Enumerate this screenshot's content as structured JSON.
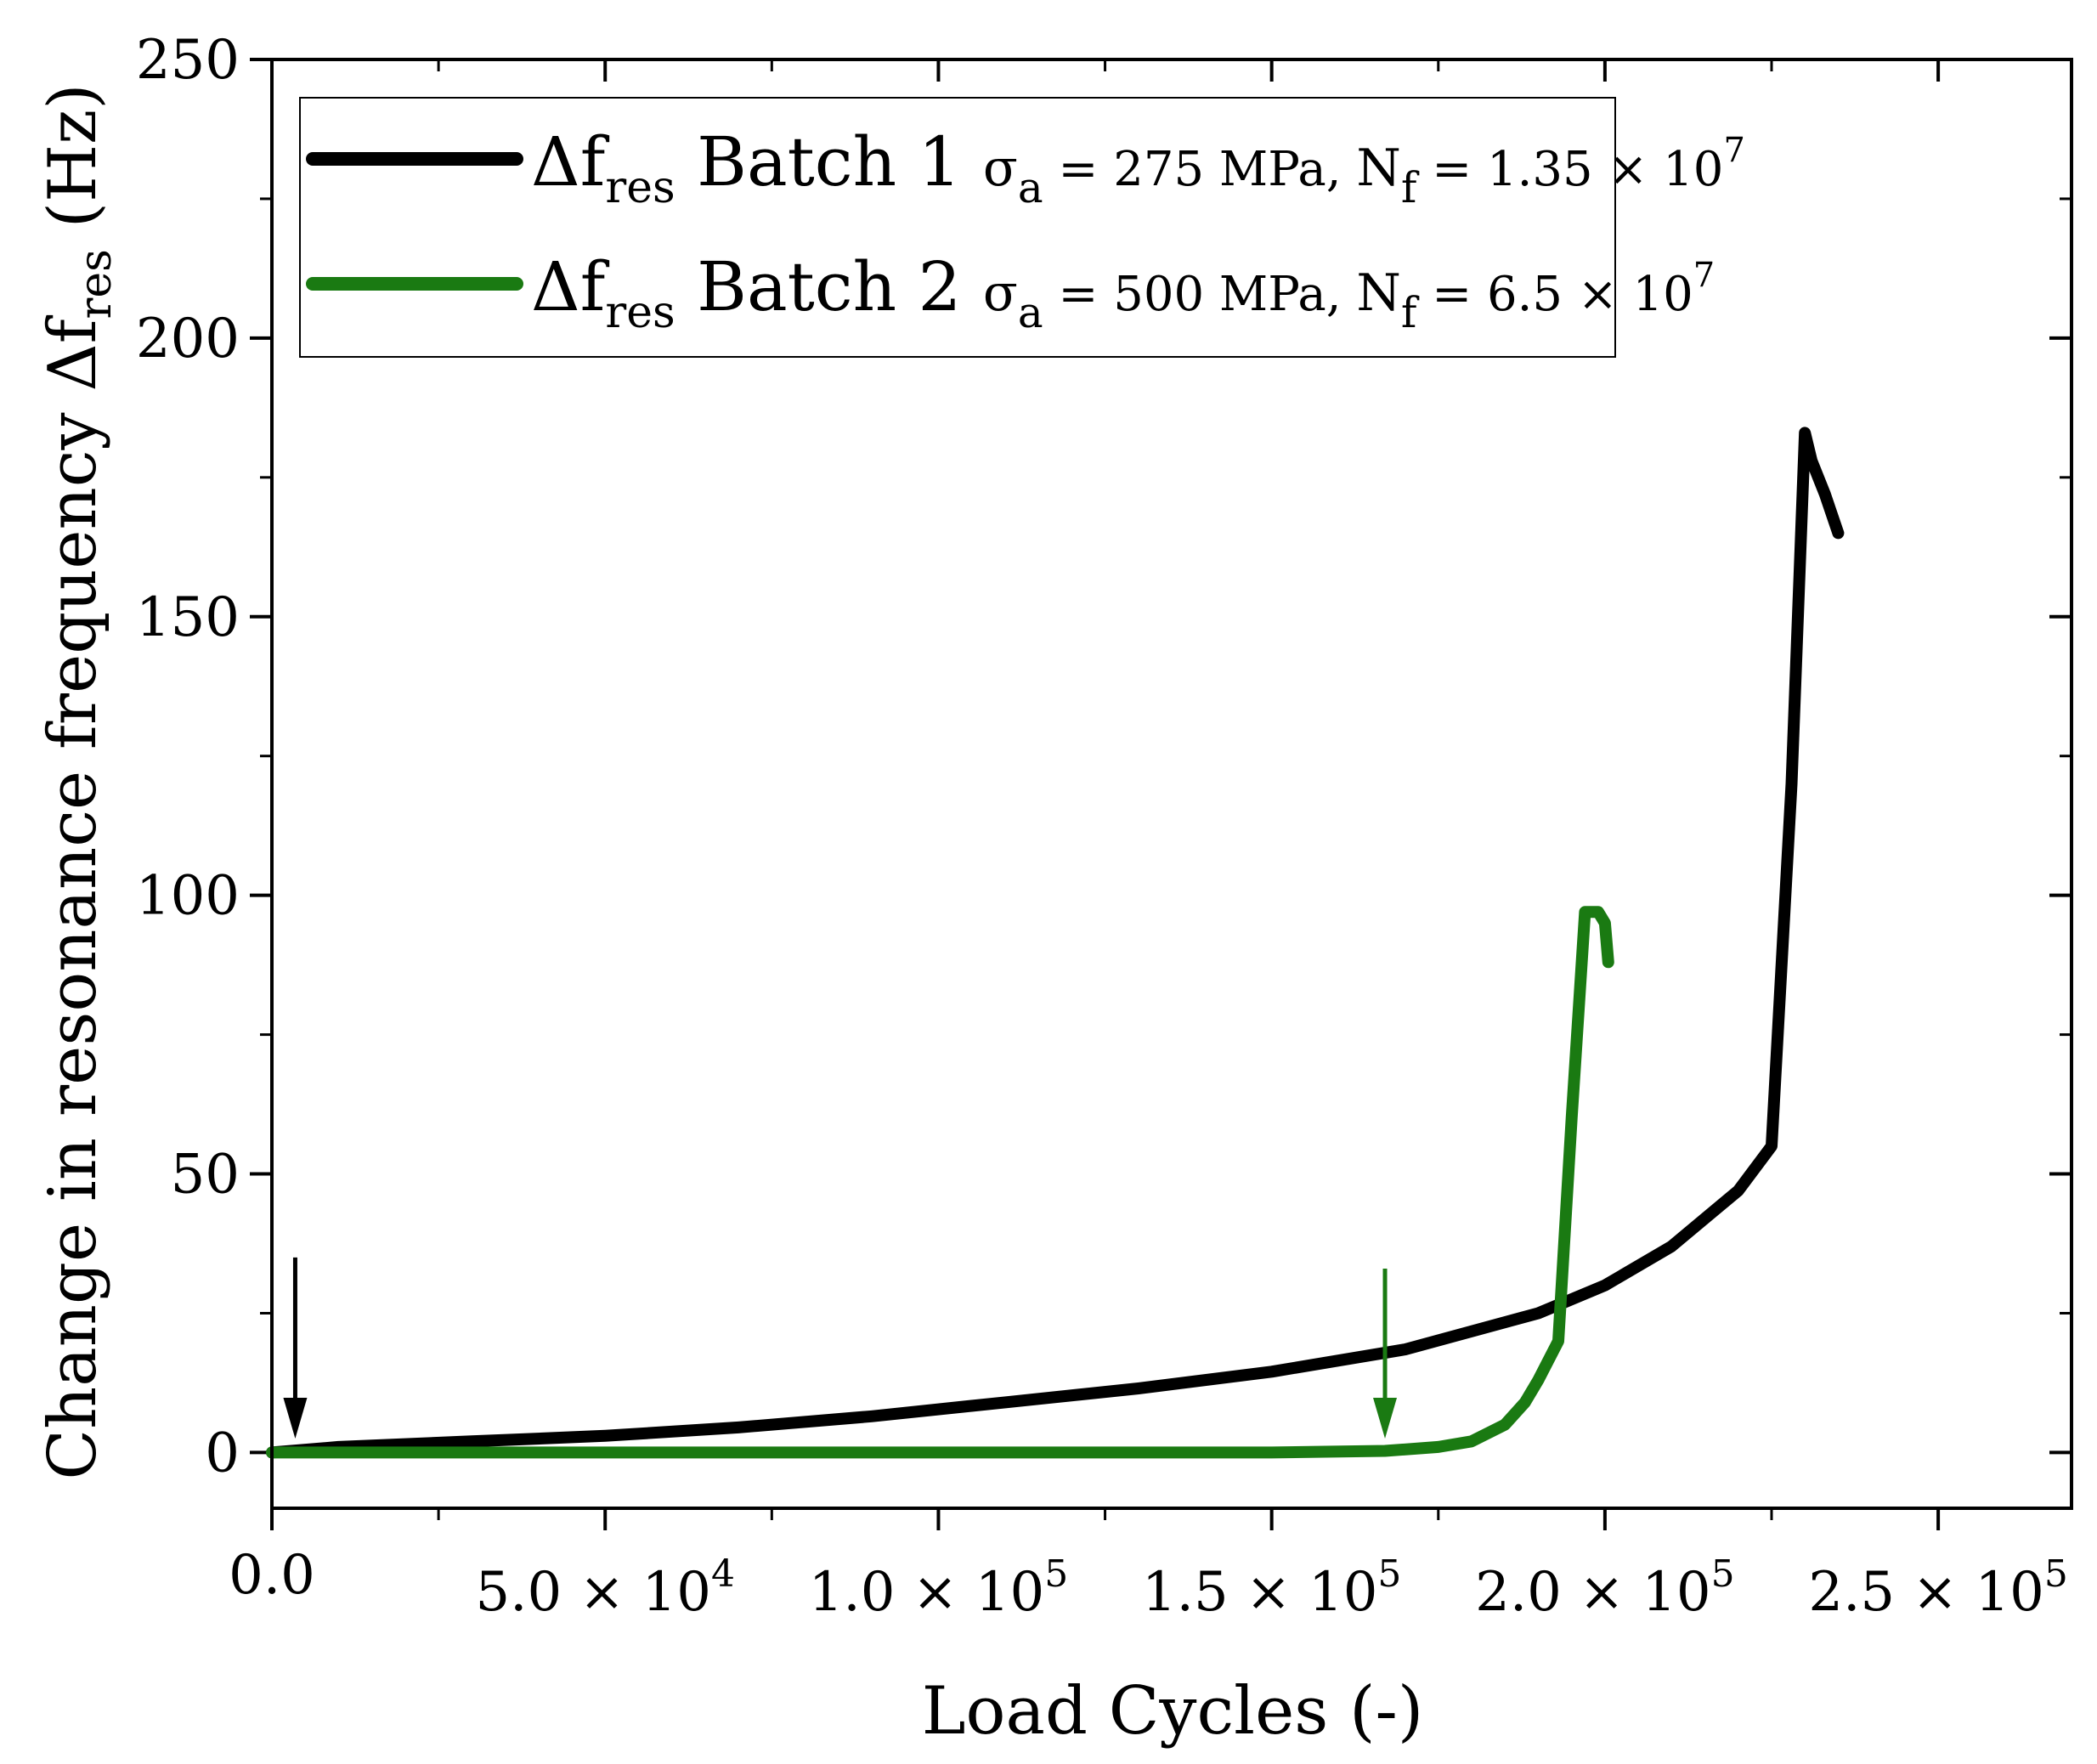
{
  "chart_data": {
    "type": "line",
    "title": "",
    "xlabel": "Load Cycles (-)",
    "ylabel": {
      "main": "Change in resonance frequency Δf",
      "sub": "res",
      "unit": "(Hz)"
    },
    "xlim": [
      0,
      270000
    ],
    "ylim": [
      -10,
      250
    ],
    "x_ticks": [
      {
        "value": 0,
        "mantissa": "0.0",
        "times": "",
        "base": "",
        "exp": ""
      },
      {
        "value": 50000,
        "mantissa": "5.0",
        "times": "×",
        "base": "10",
        "exp": "4"
      },
      {
        "value": 100000,
        "mantissa": "1.0",
        "times": "×",
        "base": "10",
        "exp": "5"
      },
      {
        "value": 150000,
        "mantissa": "1.5",
        "times": "×",
        "base": "10",
        "exp": "5"
      },
      {
        "value": 200000,
        "mantissa": "2.0",
        "times": "×",
        "base": "10",
        "exp": "5"
      },
      {
        "value": 250000,
        "mantissa": "2.5",
        "times": "×",
        "base": "10",
        "exp": "5"
      }
    ],
    "y_ticks": [
      {
        "value": 0,
        "label": "0"
      },
      {
        "value": 50,
        "label": "50"
      },
      {
        "value": 100,
        "label": "100"
      },
      {
        "value": 150,
        "label": "150"
      },
      {
        "value": 200,
        "label": "200"
      },
      {
        "value": 250,
        "label": "250"
      }
    ],
    "grid": false,
    "legend_position": "top-left",
    "series": [
      {
        "name": "Batch 1",
        "color": "#000000",
        "legend": {
          "delta": "Δf",
          "delta_sub": "res",
          "batch": "Batch 1",
          "sigma": "σ",
          "sigma_sub": "a",
          "stress": "= 275 MPa,",
          "n": "N",
          "n_sub": "f",
          "life": "= 1.35 × 10",
          "life_exp": "7"
        },
        "x": [
          0,
          10000,
          30000,
          50000,
          70000,
          90000,
          110000,
          130000,
          150000,
          170000,
          190000,
          200000,
          210000,
          220000,
          225000,
          228000,
          230000,
          231000,
          233000,
          235000
        ],
        "y": [
          0,
          1,
          2,
          3,
          4.5,
          6.5,
          9,
          11.5,
          14.5,
          18.5,
          25,
          30,
          37,
          47,
          55,
          120,
          183,
          178,
          172,
          165
        ]
      },
      {
        "name": "Batch 2",
        "color": "#1a7a12",
        "legend": {
          "delta": "Δf",
          "delta_sub": "res",
          "batch": "Batch 2",
          "sigma": "σ",
          "sigma_sub": "a",
          "stress": "= 500 MPa,",
          "n": "N",
          "n_sub": "f",
          "life": "= 6.5 × 10",
          "life_exp": "7"
        },
        "x": [
          0,
          50000,
          100000,
          150000,
          167000,
          175000,
          180000,
          185000,
          188000,
          190000,
          193000,
          195000,
          197000,
          199000,
          200000,
          200500
        ],
        "y": [
          0,
          0,
          0,
          0,
          0.3,
          1,
          2,
          5,
          9,
          13,
          20,
          60,
          97,
          97,
          95,
          88
        ]
      }
    ],
    "annotations": [
      {
        "type": "arrow",
        "series": "Batch 1",
        "color": "#000000",
        "x": 3500,
        "y_from": 35,
        "y_to": 2.5
      },
      {
        "type": "arrow",
        "series": "Batch 2",
        "color": "#1a7a12",
        "x": 167000,
        "y_from": 33,
        "y_to": 2.5
      }
    ]
  }
}
